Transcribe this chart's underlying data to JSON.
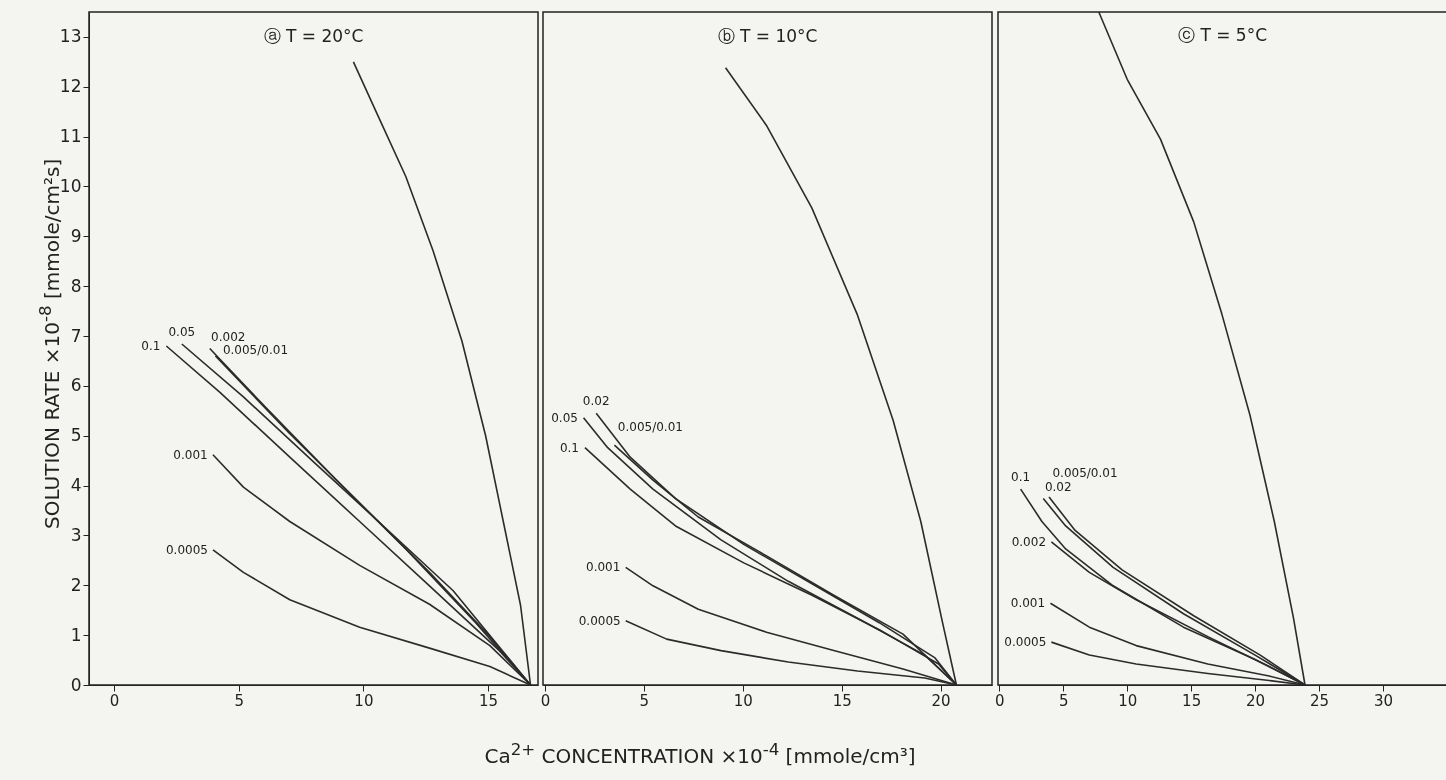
{
  "chart_data": [
    {
      "type": "line",
      "title": "ⓐ T = 20°C",
      "ylabel": "SOLUTION RATE ×10$^{-8}$ [mmole/cm²s]",
      "xlim": [
        -1,
        17
      ],
      "xticks": [
        0,
        5,
        10,
        15
      ],
      "ylim": [
        0,
        13.5
      ],
      "yticks": [
        0,
        1,
        2,
        3,
        4,
        5,
        6,
        7,
        8,
        9,
        10,
        11,
        12,
        13
      ],
      "grid": false,
      "series": [
        {
          "color": "#2b2b2b",
          "x": [
            9.6,
            10.6,
            11.7,
            12.8,
            13.95,
            14.9,
            15.6,
            16.3,
            16.7
          ],
          "values": [
            12.5,
            11.4,
            10.2,
            8.7,
            6.9,
            5.0,
            3.3,
            1.6,
            0
          ]
        },
        {
          "name": "0.1",
          "color": "#2b2b2b",
          "x": [
            2.1,
            4.25,
            7.05,
            9.85,
            12.65,
            15.45,
            16.7
          ],
          "values": [
            6.8,
            5.87,
            4.57,
            3.28,
            1.99,
            0.69,
            0
          ]
        },
        {
          "name": "0.05",
          "color": "#2b2b2b",
          "x": [
            2.72,
            5.19,
            7.99,
            10.8,
            13.6,
            16.7
          ],
          "values": [
            6.84,
            5.78,
            4.48,
            3.19,
            1.89,
            0
          ]
        },
        {
          "name": "0.002",
          "color": "#2b2b2b",
          "x": [
            3.84,
            6.12,
            8.92,
            11.7,
            14.5,
            16.7
          ],
          "values": [
            6.75,
            5.55,
            4.11,
            2.73,
            1.25,
            0
          ]
        },
        {
          "name": "0.005/0.01",
          "color": "#2b2b2b",
          "x": [
            4.07,
            7.05,
            9.85,
            12.65,
            15.07,
            16.7
          ],
          "values": [
            6.6,
            5.04,
            3.65,
            2.26,
            0.97,
            0
          ]
        },
        {
          "name": "0.001",
          "color": "#2b2b2b",
          "x": [
            3.97,
            5.19,
            7.05,
            9.85,
            12.65,
            15.07,
            16.7
          ],
          "values": [
            4.62,
            3.97,
            3.28,
            2.4,
            1.62,
            0.79,
            0
          ]
        },
        {
          "name": "0.0005",
          "color": "#2b2b2b",
          "x": [
            3.97,
            5.19,
            7.05,
            9.85,
            12.65,
            15.07,
            16.7
          ],
          "values": [
            2.71,
            2.26,
            1.71,
            1.16,
            0.74,
            0.37,
            0
          ]
        }
      ]
    },
    {
      "type": "line",
      "title": "ⓑ T = 10°C",
      "xlabel": "Ca$^{2+}$ CONCENTRATION ×10$^{-4}$ [mmole/cm³]",
      "xlim": [
        -0.1,
        22.6
      ],
      "xticks": [
        0,
        5,
        10,
        15,
        20
      ],
      "ylim": [
        0,
        13.5
      ],
      "tick_labels": "x",
      "grid": false,
      "series": [
        {
          "color": "#2b2b2b",
          "x": [
            9.13,
            11.19,
            13.49,
            15.78,
            17.6,
            19.0,
            20.1,
            20.8
          ],
          "values": [
            12.38,
            11.23,
            9.57,
            7.44,
            5.31,
            3.28,
            1.25,
            0
          ]
        },
        {
          "name": "0.1",
          "color": "#2b2b2b",
          "x": [
            2.02,
            4.31,
            6.6,
            10.05,
            13.5,
            16.9,
            19.9,
            20.8
          ],
          "values": [
            4.76,
            3.93,
            3.19,
            2.45,
            1.8,
            1.11,
            0.42,
            0
          ]
        },
        {
          "name": "0.05",
          "color": "#2b2b2b",
          "x": [
            1.95,
            3.17,
            5.46,
            8.9,
            12.3,
            15.8,
            19.2,
            20.8
          ],
          "values": [
            5.36,
            4.76,
            3.93,
            2.91,
            2.08,
            1.34,
            0.6,
            0
          ]
        },
        {
          "name": "0.02",
          "color": "#2b2b2b",
          "x": [
            2.59,
            4.31,
            6.6,
            10.05,
            13.5,
            16.9,
            19.7,
            20.8
          ],
          "values": [
            5.45,
            4.57,
            3.74,
            2.82,
            2.03,
            1.25,
            0.55,
            0
          ]
        },
        {
          "name": "0.005/0.01",
          "color": "#2b2b2b",
          "x": [
            3.51,
            5.46,
            7.75,
            11.2,
            14.6,
            18.1,
            20.8
          ],
          "values": [
            4.81,
            4.11,
            3.37,
            2.59,
            1.8,
            1.02,
            0
          ]
        },
        {
          "name": "0.001",
          "color": "#2b2b2b",
          "x": [
            4.08,
            5.46,
            7.75,
            11.2,
            14.6,
            18.1,
            20.8
          ],
          "values": [
            2.36,
            1.99,
            1.52,
            1.06,
            0.69,
            0.32,
            0
          ]
        },
        {
          "name": "0.0005",
          "color": "#2b2b2b",
          "x": [
            4.08,
            6.15,
            8.9,
            12.3,
            15.8,
            19.2,
            20.8
          ],
          "values": [
            1.29,
            0.92,
            0.69,
            0.46,
            0.28,
            0.14,
            0
          ]
        }
      ]
    },
    {
      "type": "line",
      "title": "ⓒ T = 5°C",
      "xlim": [
        -0.1,
        35
      ],
      "xticks": [
        0,
        5,
        10,
        15,
        20,
        25,
        30
      ],
      "ylim": [
        0,
        13.5
      ],
      "tick_labels": "x",
      "grid": false,
      "series": [
        {
          "color": "#2b2b2b",
          "x": [
            7.78,
            10,
            12.6,
            15.2,
            17.4,
            19.6,
            21.5,
            23.0,
            23.9
          ],
          "values": [
            13.5,
            12.15,
            10.95,
            9.29,
            7.44,
            5.41,
            3.28,
            1.34,
            0
          ]
        },
        {
          "name": "0.1",
          "color": "#2b2b2b",
          "x": [
            1.67,
            3.33,
            5.19,
            8.9,
            14.4,
            20.0,
            23.9
          ],
          "values": [
            3.93,
            3.28,
            2.73,
            1.99,
            1.16,
            0.51,
            0
          ]
        },
        {
          "name": "0.02",
          "color": "#2b2b2b",
          "x": [
            3.44,
            5.19,
            8.9,
            14.4,
            20.0,
            23.9
          ],
          "values": [
            3.74,
            3.19,
            2.36,
            1.43,
            0.6,
            0
          ]
        },
        {
          "name": "0.005/0.01",
          "color": "#2b2b2b",
          "x": [
            3.89,
            5.93,
            9.6,
            15.2,
            20.4,
            23.9
          ],
          "values": [
            3.77,
            3.1,
            2.31,
            1.39,
            0.6,
            0
          ]
        },
        {
          "name": "0.002",
          "color": "#2b2b2b",
          "x": [
            4.07,
            7.04,
            10.7,
            16.3,
            21.1,
            23.9
          ],
          "values": [
            2.87,
            2.26,
            1.71,
            0.97,
            0.37,
            0
          ]
        },
        {
          "name": "0.001",
          "color": "#2b2b2b",
          "x": [
            4.0,
            7.04,
            10.7,
            16.3,
            21.1,
            23.9
          ],
          "values": [
            1.64,
            1.16,
            0.79,
            0.42,
            0.18,
            0
          ]
        },
        {
          "name": "0.0005",
          "color": "#2b2b2b",
          "x": [
            4.07,
            7.04,
            10.7,
            16.3,
            21.1,
            23.9
          ],
          "values": [
            0.86,
            0.6,
            0.42,
            0.23,
            0.09,
            0
          ]
        }
      ]
    }
  ]
}
